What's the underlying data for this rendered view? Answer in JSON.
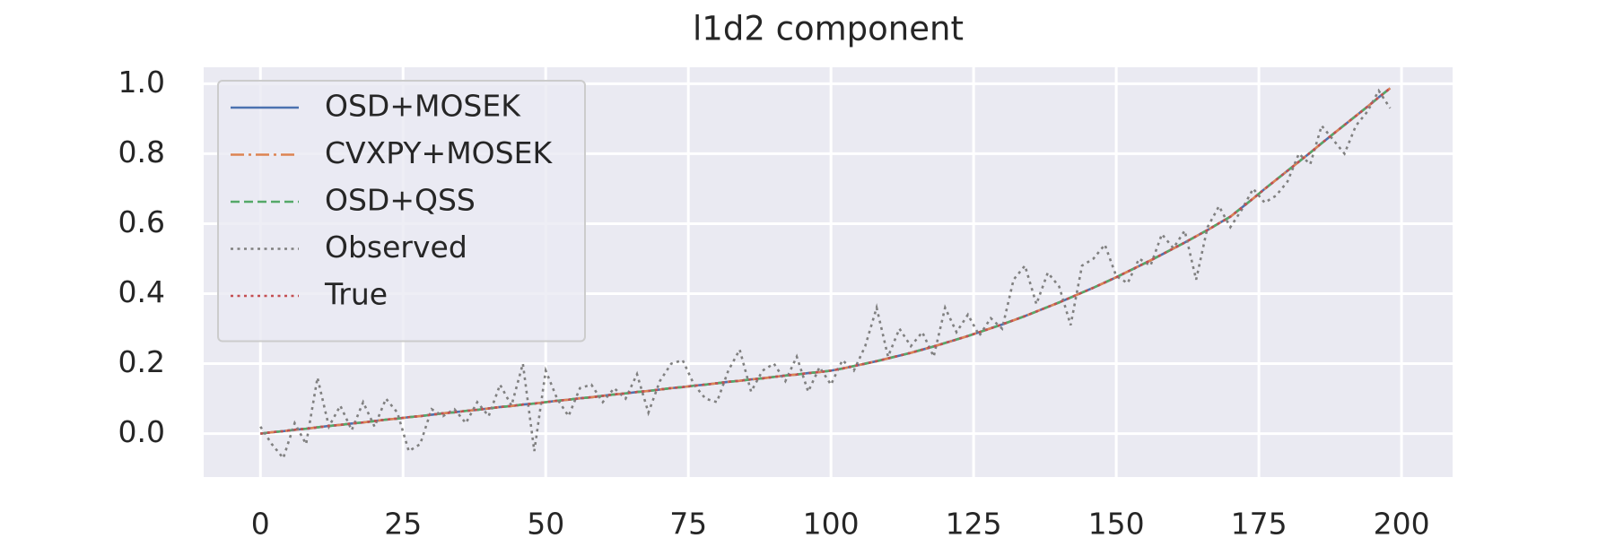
{
  "chart_data": {
    "type": "line",
    "title": "l1d2 component",
    "x": [
      0,
      2,
      4,
      6,
      8,
      10,
      12,
      14,
      16,
      18,
      20,
      22,
      24,
      26,
      28,
      30,
      32,
      34,
      36,
      38,
      40,
      42,
      44,
      46,
      48,
      50,
      52,
      54,
      56,
      58,
      60,
      62,
      64,
      66,
      68,
      70,
      72,
      74,
      76,
      78,
      80,
      82,
      84,
      86,
      88,
      90,
      92,
      94,
      96,
      98,
      100,
      102,
      104,
      106,
      108,
      110,
      112,
      114,
      116,
      118,
      120,
      122,
      124,
      126,
      128,
      130,
      132,
      134,
      136,
      138,
      140,
      142,
      144,
      146,
      148,
      150,
      152,
      154,
      156,
      158,
      160,
      162,
      164,
      166,
      168,
      170,
      172,
      174,
      176,
      178,
      180,
      182,
      184,
      186,
      188,
      190,
      192,
      194,
      196,
      198
    ],
    "series": [
      {
        "name": "OSD+MOSEK",
        "color": "#4c72b0",
        "dash": "solid",
        "values": [
          0,
          0.004,
          0.007,
          0.011,
          0.014,
          0.018,
          0.022,
          0.025,
          0.029,
          0.032,
          0.036,
          0.04,
          0.043,
          0.047,
          0.05,
          0.054,
          0.058,
          0.061,
          0.065,
          0.068,
          0.072,
          0.076,
          0.079,
          0.083,
          0.086,
          0.09,
          0.094,
          0.097,
          0.101,
          0.104,
          0.108,
          0.112,
          0.115,
          0.119,
          0.122,
          0.126,
          0.13,
          0.133,
          0.137,
          0.14,
          0.144,
          0.148,
          0.151,
          0.155,
          0.158,
          0.162,
          0.166,
          0.169,
          0.173,
          0.176,
          0.18,
          0.186,
          0.193,
          0.2,
          0.207,
          0.215,
          0.223,
          0.231,
          0.24,
          0.249,
          0.259,
          0.269,
          0.279,
          0.29,
          0.301,
          0.312,
          0.324,
          0.336,
          0.349,
          0.362,
          0.375,
          0.389,
          0.403,
          0.417,
          0.432,
          0.447,
          0.463,
          0.479,
          0.495,
          0.512,
          0.529,
          0.546,
          0.564,
          0.582,
          0.601,
          0.62,
          0.646,
          0.672,
          0.699,
          0.725,
          0.751,
          0.777,
          0.803,
          0.83,
          0.856,
          0.882,
          0.908,
          0.934,
          0.961,
          0.987
        ]
      },
      {
        "name": "CVXPY+MOSEK",
        "color": "#dd8452",
        "dash": "dashdot",
        "values": [
          0,
          0.004,
          0.007,
          0.011,
          0.014,
          0.018,
          0.022,
          0.025,
          0.029,
          0.032,
          0.036,
          0.04,
          0.043,
          0.047,
          0.05,
          0.054,
          0.058,
          0.061,
          0.065,
          0.068,
          0.072,
          0.076,
          0.079,
          0.083,
          0.086,
          0.09,
          0.094,
          0.097,
          0.101,
          0.104,
          0.108,
          0.112,
          0.115,
          0.119,
          0.122,
          0.126,
          0.13,
          0.133,
          0.137,
          0.14,
          0.144,
          0.148,
          0.151,
          0.155,
          0.158,
          0.162,
          0.166,
          0.169,
          0.173,
          0.176,
          0.18,
          0.186,
          0.193,
          0.2,
          0.207,
          0.215,
          0.223,
          0.231,
          0.24,
          0.249,
          0.259,
          0.269,
          0.279,
          0.29,
          0.301,
          0.312,
          0.324,
          0.336,
          0.349,
          0.362,
          0.375,
          0.389,
          0.403,
          0.417,
          0.432,
          0.447,
          0.463,
          0.479,
          0.495,
          0.512,
          0.529,
          0.546,
          0.564,
          0.582,
          0.601,
          0.62,
          0.646,
          0.672,
          0.699,
          0.725,
          0.751,
          0.777,
          0.803,
          0.83,
          0.856,
          0.882,
          0.908,
          0.934,
          0.961,
          0.987
        ]
      },
      {
        "name": "OSD+QSS",
        "color": "#55a868",
        "dash": "dashed",
        "values": [
          0,
          0.004,
          0.007,
          0.011,
          0.014,
          0.018,
          0.022,
          0.025,
          0.029,
          0.032,
          0.036,
          0.04,
          0.043,
          0.047,
          0.05,
          0.054,
          0.058,
          0.061,
          0.065,
          0.068,
          0.072,
          0.076,
          0.079,
          0.083,
          0.086,
          0.09,
          0.094,
          0.097,
          0.101,
          0.104,
          0.108,
          0.112,
          0.115,
          0.119,
          0.122,
          0.126,
          0.13,
          0.133,
          0.137,
          0.14,
          0.144,
          0.148,
          0.151,
          0.155,
          0.158,
          0.162,
          0.166,
          0.169,
          0.173,
          0.176,
          0.18,
          0.186,
          0.193,
          0.2,
          0.207,
          0.215,
          0.223,
          0.231,
          0.24,
          0.249,
          0.259,
          0.269,
          0.279,
          0.29,
          0.301,
          0.312,
          0.324,
          0.336,
          0.349,
          0.362,
          0.375,
          0.389,
          0.403,
          0.417,
          0.432,
          0.447,
          0.463,
          0.479,
          0.495,
          0.512,
          0.529,
          0.546,
          0.564,
          0.582,
          0.601,
          0.62,
          0.646,
          0.672,
          0.699,
          0.725,
          0.751,
          0.777,
          0.803,
          0.83,
          0.856,
          0.882,
          0.908,
          0.934,
          0.961,
          0.987
        ]
      },
      {
        "name": "Observed",
        "color": "#808080",
        "dash": "dotted",
        "values": [
          0.02,
          -0.03,
          -0.07,
          0.03,
          -0.03,
          0.16,
          0.02,
          0.08,
          0.01,
          0.09,
          0.02,
          0.1,
          0.06,
          -0.05,
          -0.03,
          0.07,
          0.05,
          0.07,
          0.03,
          0.09,
          0.05,
          0.14,
          0.08,
          0.2,
          -0.05,
          0.18,
          0.1,
          0.05,
          0.13,
          0.14,
          0.09,
          0.13,
          0.1,
          0.17,
          0.06,
          0.15,
          0.2,
          0.21,
          0.14,
          0.1,
          0.09,
          0.18,
          0.24,
          0.12,
          0.18,
          0.2,
          0.15,
          0.22,
          0.12,
          0.19,
          0.14,
          0.21,
          0.18,
          0.25,
          0.36,
          0.22,
          0.3,
          0.25,
          0.29,
          0.22,
          0.36,
          0.29,
          0.34,
          0.28,
          0.33,
          0.3,
          0.44,
          0.48,
          0.37,
          0.46,
          0.42,
          0.31,
          0.48,
          0.5,
          0.54,
          0.45,
          0.43,
          0.5,
          0.48,
          0.57,
          0.53,
          0.58,
          0.44,
          0.59,
          0.65,
          0.59,
          0.64,
          0.7,
          0.66,
          0.68,
          0.72,
          0.8,
          0.77,
          0.88,
          0.84,
          0.8,
          0.88,
          0.92,
          0.98,
          0.93
        ]
      },
      {
        "name": "True",
        "color": "#c44e52",
        "dash": "dotted",
        "values": [
          0,
          0.004,
          0.007,
          0.011,
          0.014,
          0.018,
          0.022,
          0.025,
          0.029,
          0.032,
          0.036,
          0.04,
          0.043,
          0.047,
          0.05,
          0.054,
          0.058,
          0.061,
          0.065,
          0.068,
          0.072,
          0.076,
          0.079,
          0.083,
          0.086,
          0.09,
          0.094,
          0.097,
          0.101,
          0.104,
          0.108,
          0.112,
          0.115,
          0.119,
          0.122,
          0.126,
          0.13,
          0.133,
          0.137,
          0.14,
          0.144,
          0.148,
          0.151,
          0.155,
          0.158,
          0.162,
          0.166,
          0.169,
          0.173,
          0.176,
          0.18,
          0.186,
          0.193,
          0.2,
          0.207,
          0.215,
          0.223,
          0.231,
          0.24,
          0.249,
          0.259,
          0.269,
          0.279,
          0.29,
          0.301,
          0.312,
          0.324,
          0.336,
          0.349,
          0.362,
          0.375,
          0.389,
          0.403,
          0.417,
          0.432,
          0.447,
          0.463,
          0.479,
          0.495,
          0.512,
          0.529,
          0.546,
          0.564,
          0.582,
          0.601,
          0.62,
          0.646,
          0.672,
          0.699,
          0.725,
          0.751,
          0.777,
          0.803,
          0.83,
          0.856,
          0.882,
          0.908,
          0.934,
          0.961,
          0.987
        ]
      }
    ],
    "xlim": [
      -9.95,
      208.95
    ],
    "ylim": [
      -0.124,
      1.047
    ],
    "xticks": [
      0,
      25,
      50,
      75,
      100,
      125,
      150,
      175,
      200
    ],
    "yticks": [
      {
        "value": 0,
        "label": "0.0"
      },
      0.2,
      0.4,
      0.6,
      0.8,
      {
        "value": 1,
        "label": "1.0"
      }
    ],
    "grid": true,
    "legend": "upper left"
  }
}
